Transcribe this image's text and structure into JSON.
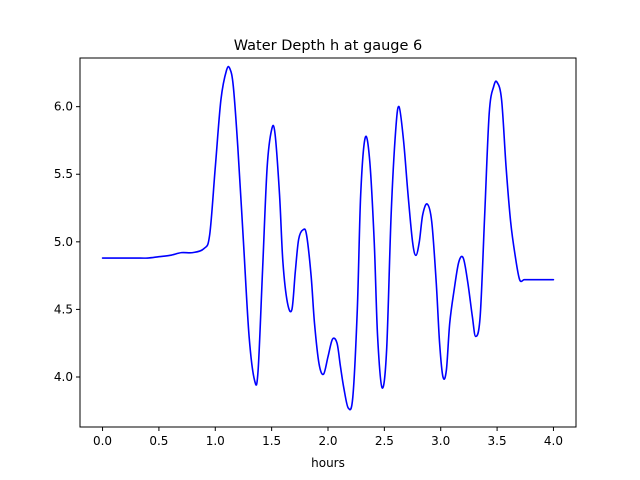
{
  "chart_data": {
    "type": "line",
    "title": "Water Depth h at gauge 6",
    "xlabel": "hours",
    "ylabel": "",
    "xlim": [
      -0.2,
      4.2
    ],
    "ylim": [
      3.63,
      6.36
    ],
    "xticks": [
      0.0,
      0.5,
      1.0,
      1.5,
      2.0,
      2.5,
      3.0,
      3.5,
      4.0
    ],
    "xtick_labels": [
      "0.0",
      "0.5",
      "1.0",
      "1.5",
      "2.0",
      "2.5",
      "3.0",
      "3.5",
      "4.0"
    ],
    "yticks": [
      4.0,
      4.5,
      5.0,
      5.5,
      6.0
    ],
    "ytick_labels": [
      "4.0",
      "4.5",
      "5.0",
      "5.5",
      "6.0"
    ],
    "grid": false,
    "legend": "none",
    "series": [
      {
        "color": "#0000ff",
        "x": [
          0.0,
          0.1,
          0.2,
          0.3,
          0.4,
          0.5,
          0.6,
          0.7,
          0.8,
          0.9,
          0.95,
          1.0,
          1.05,
          1.1,
          1.13,
          1.16,
          1.2,
          1.25,
          1.3,
          1.35,
          1.38,
          1.42,
          1.46,
          1.5,
          1.53,
          1.57,
          1.6,
          1.64,
          1.68,
          1.71,
          1.74,
          1.78,
          1.81,
          1.85,
          1.88,
          1.92,
          1.96,
          2.0,
          2.04,
          2.08,
          2.11,
          2.14,
          2.18,
          2.22,
          2.26,
          2.29,
          2.33,
          2.37,
          2.41,
          2.44,
          2.48,
          2.52,
          2.56,
          2.6,
          2.63,
          2.67,
          2.71,
          2.75,
          2.78,
          2.81,
          2.84,
          2.88,
          2.92,
          2.96,
          2.99,
          3.02,
          3.05,
          3.08,
          3.12,
          3.16,
          3.2,
          3.24,
          3.28,
          3.31,
          3.35,
          3.39,
          3.43,
          3.47,
          3.5,
          3.54,
          3.58,
          3.62,
          3.66,
          3.7,
          3.74,
          3.78,
          3.81,
          3.85,
          3.89,
          3.93,
          3.97,
          4.0
        ],
        "y": [
          4.88,
          4.88,
          4.88,
          4.88,
          4.88,
          4.89,
          4.9,
          4.92,
          4.92,
          4.95,
          5.05,
          5.55,
          6.05,
          6.27,
          6.28,
          6.15,
          5.7,
          5.0,
          4.3,
          3.97,
          4.05,
          4.8,
          5.55,
          5.83,
          5.8,
          5.35,
          4.85,
          4.55,
          4.5,
          4.78,
          5.02,
          5.09,
          5.05,
          4.75,
          4.4,
          4.1,
          4.02,
          4.15,
          4.28,
          4.25,
          4.08,
          3.92,
          3.77,
          3.85,
          4.5,
          5.35,
          5.77,
          5.6,
          5.0,
          4.3,
          3.92,
          4.2,
          5.2,
          5.82,
          6.0,
          5.75,
          5.35,
          5.0,
          4.9,
          5.0,
          5.2,
          5.28,
          5.15,
          4.7,
          4.25,
          4.0,
          4.05,
          4.4,
          4.65,
          4.85,
          4.88,
          4.7,
          4.45,
          4.3,
          4.45,
          5.2,
          5.95,
          6.15,
          6.18,
          6.05,
          5.55,
          5.15,
          4.9,
          4.72,
          4.72,
          4.72,
          4.72,
          4.72,
          4.72,
          4.72,
          4.72,
          4.72
        ]
      }
    ]
  }
}
